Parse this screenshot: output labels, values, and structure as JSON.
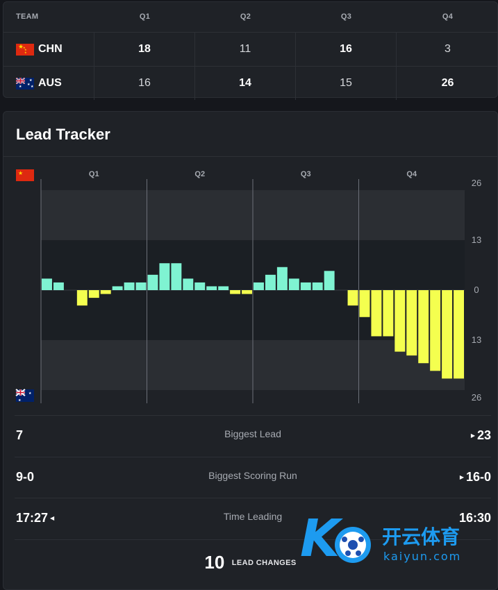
{
  "score_table": {
    "header": {
      "team": "TEAM",
      "q1": "Q1",
      "q2": "Q2",
      "q3": "Q3",
      "q4": "Q4"
    },
    "rows": [
      {
        "team": "CHN",
        "flag": "china-flag",
        "q": [
          "18",
          "11",
          "16",
          "3"
        ],
        "highlight": [
          true,
          false,
          true,
          false
        ]
      },
      {
        "team": "AUS",
        "flag": "australia-flag",
        "q": [
          "16",
          "14",
          "15",
          "26"
        ],
        "highlight": [
          false,
          true,
          false,
          true
        ]
      }
    ]
  },
  "tracker": {
    "title": "Lead Tracker",
    "colors": {
      "chn": "#7ff3d2",
      "aus": "#f4ff4f",
      "band_outer": "#2b2e33",
      "band_inner": "#1b1f24"
    }
  },
  "chart_data": {
    "type": "bar",
    "quarters": [
      "Q1",
      "Q2",
      "Q3",
      "Q4"
    ],
    "y_ticks": [
      "26",
      "13",
      "0",
      "13",
      "26"
    ],
    "ylim": [
      -26,
      26
    ],
    "values": [
      3,
      2,
      0,
      -4,
      -2,
      -1,
      1,
      2,
      2,
      4,
      7,
      7,
      3,
      2,
      1,
      1,
      -1,
      -1,
      2,
      4,
      6,
      3,
      2,
      2,
      5,
      0,
      -4,
      -7,
      -12,
      -12,
      -16,
      -17,
      -19,
      -21,
      -23,
      -23
    ],
    "series": [
      {
        "name": "CHN",
        "side": "positive",
        "color": "#7ff3d2"
      },
      {
        "name": "AUS",
        "side": "negative",
        "color": "#f4ff4f"
      }
    ]
  },
  "stats": [
    {
      "label": "Biggest Lead",
      "left": "7",
      "right": "23",
      "leader": "right"
    },
    {
      "label": "Biggest Scoring Run",
      "left": "9-0",
      "right": "16-0",
      "leader": "right"
    },
    {
      "label": "Time Leading",
      "left": "17:27",
      "right": "16:30",
      "leader": "left"
    }
  ],
  "lead_changes": {
    "count": "10",
    "label": "LEAD CHANGES"
  },
  "watermark": {
    "brand": "开云体育",
    "domain": "kaiyun.com"
  }
}
